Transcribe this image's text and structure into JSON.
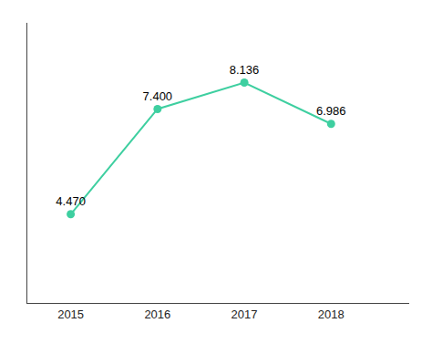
{
  "chart_data": {
    "type": "line",
    "x": [
      2015,
      2016,
      2017,
      2018
    ],
    "values": [
      4.47,
      7.4,
      8.136,
      6.986
    ],
    "value_labels": [
      "4.470",
      "7.400",
      "8.136",
      "6.986"
    ],
    "data_labels": true,
    "color": "#3ecfa0",
    "marker": "circle",
    "xlim": [
      2014.5,
      2018.9
    ],
    "xticks": [
      2015,
      2016,
      2017,
      2018
    ],
    "ylim": [
      2.0,
      9.8
    ],
    "tick_labels": "x",
    "grid": false
  }
}
